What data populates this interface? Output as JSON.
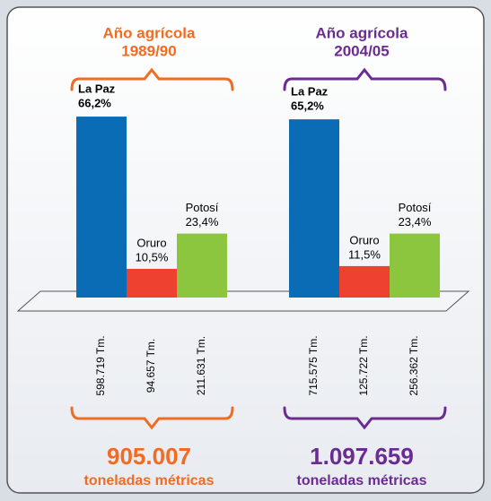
{
  "chart_data": [
    {
      "type": "bar",
      "title": "Año agrícola",
      "subtitle": "1989/90",
      "color": "#f26b21",
      "categories": [
        "La Paz",
        "Oruro",
        "Potosí"
      ],
      "values": [
        66.2,
        10.5,
        23.4
      ],
      "value_labels": [
        "66,2%",
        "10,5%",
        "23,4%"
      ],
      "colors": [
        "#0a6cb5",
        "#ee4130",
        "#8cc63f"
      ],
      "tonnage": [
        598719,
        94657,
        211631
      ],
      "tonnage_labels": [
        "598.719 Tm.",
        "94.657 Tm.",
        "211.631 Tm."
      ],
      "total": 905007,
      "total_label": "905.007",
      "total_unit": "toneladas métricas"
    },
    {
      "type": "bar",
      "title": "Año agrícola",
      "subtitle": "2004/05",
      "color": "#6a2c91",
      "categories": [
        "La Paz",
        "Oruro",
        "Potosí"
      ],
      "values": [
        65.2,
        11.5,
        23.4
      ],
      "value_labels": [
        "65,2%",
        "11,5%",
        "23,4%"
      ],
      "colors": [
        "#0a6cb5",
        "#ee4130",
        "#8cc63f"
      ],
      "tonnage": [
        715575,
        125722,
        256362
      ],
      "tonnage_labels": [
        "715.575 Tm.",
        "125.722 Tm.",
        "256.362 Tm."
      ],
      "total": 1097659,
      "total_label": "1.097.659",
      "total_unit": "toneladas métricas"
    }
  ]
}
